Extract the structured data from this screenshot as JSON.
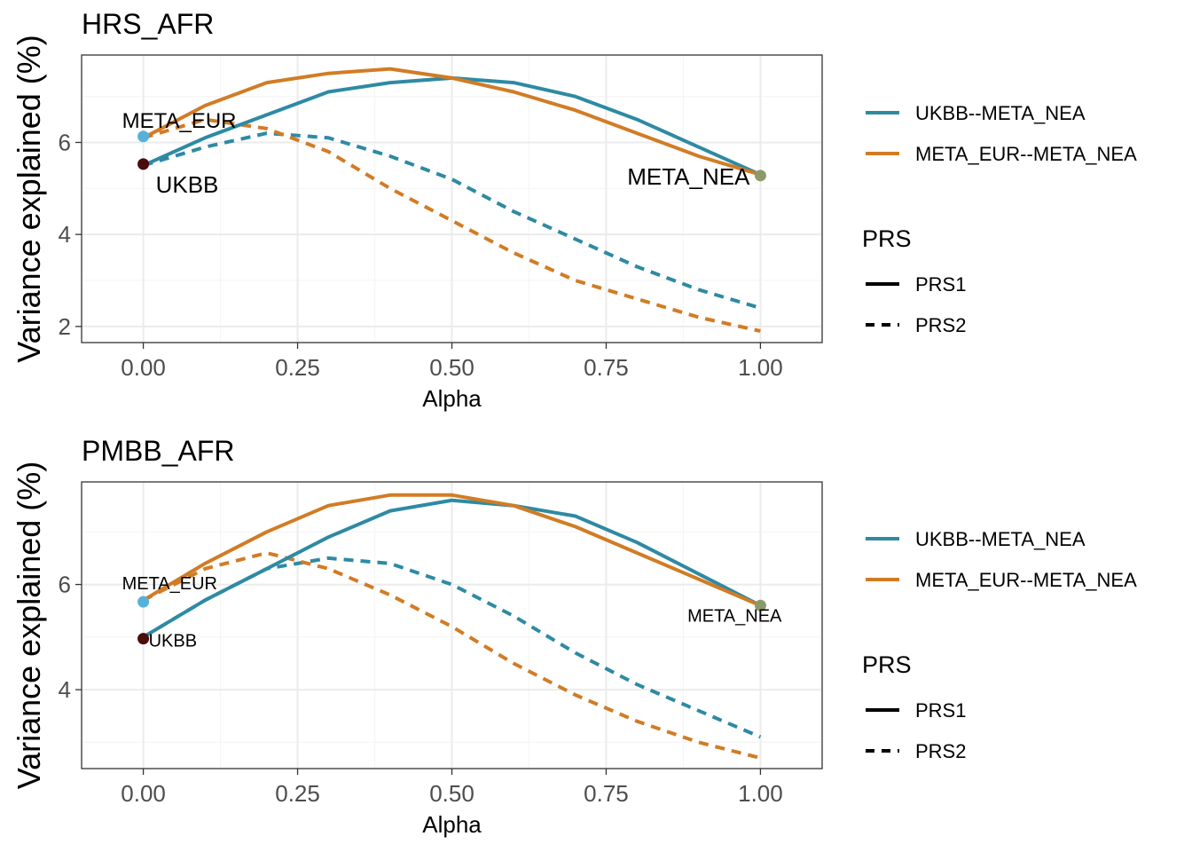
{
  "colors": {
    "teal": "#2E8AA3",
    "orange": "#D17C25",
    "ukbb_point": "#4A0C0C",
    "meta_eur_point": "#56B1DA",
    "meta_nea_point": "#8A9A6A",
    "grid_major": "#EBEBEB",
    "grid_minor": "#F5F5F5",
    "panel_border": "#333333"
  },
  "chart_data": [
    {
      "type": "line",
      "title": "HRS_AFR",
      "xlabel": "Alpha",
      "ylabel": "Variance explained (%)",
      "xlim": [
        -0.1,
        1.1
      ],
      "ylim": [
        1.65,
        7.9
      ],
      "x_ticks": [
        "0.00",
        "0.25",
        "0.50",
        "0.75",
        "1.00"
      ],
      "y_ticks": [
        "2",
        "4",
        "6"
      ],
      "x": [
        0,
        0.1,
        0.2,
        0.3,
        0.4,
        0.5,
        0.6,
        0.7,
        0.8,
        0.9,
        1.0
      ],
      "series": [
        {
          "pair": "UKBB--META_NEA",
          "prs": "PRS1",
          "values": [
            5.5,
            6.1,
            6.6,
            7.1,
            7.3,
            7.4,
            7.3,
            7.0,
            6.5,
            5.9,
            5.3
          ]
        },
        {
          "pair": "META_EUR--META_NEA",
          "prs": "PRS1",
          "values": [
            6.1,
            6.8,
            7.3,
            7.5,
            7.6,
            7.4,
            7.1,
            6.7,
            6.2,
            5.7,
            5.3
          ]
        },
        {
          "pair": "UKBB--META_NEA",
          "prs": "PRS2",
          "values": [
            5.5,
            5.9,
            6.2,
            6.1,
            5.7,
            5.2,
            4.5,
            3.9,
            3.3,
            2.8,
            2.4
          ]
        },
        {
          "pair": "META_EUR--META_NEA",
          "prs": "PRS2",
          "values": [
            6.1,
            6.5,
            6.3,
            5.8,
            5.0,
            4.3,
            3.6,
            3.0,
            2.6,
            2.2,
            1.9
          ]
        }
      ],
      "points": [
        {
          "label": "UKBB",
          "x": 0,
          "y": 5.53,
          "color_key": "ukbb_point"
        },
        {
          "label": "META_EUR",
          "x": 0,
          "y": 6.13,
          "color_key": "meta_eur_point"
        },
        {
          "label": "META_NEA",
          "x": 1,
          "y": 5.28,
          "color_key": "meta_nea_point"
        }
      ],
      "legend": {
        "pair_items": [
          "UKBB--META_NEA",
          "META_EUR--META_NEA"
        ],
        "prs_title": "PRS",
        "prs_items": [
          "PRS1",
          "PRS2"
        ]
      }
    },
    {
      "type": "line",
      "title": "PMBB_AFR",
      "xlabel": "Alpha",
      "ylabel": "Variance explained (%)",
      "xlim": [
        -0.1,
        1.1
      ],
      "ylim": [
        2.5,
        7.95
      ],
      "x_ticks": [
        "0.00",
        "0.25",
        "0.50",
        "0.75",
        "1.00"
      ],
      "y_ticks": [
        "4",
        "6"
      ],
      "x": [
        0,
        0.1,
        0.2,
        0.3,
        0.4,
        0.5,
        0.6,
        0.7,
        0.8,
        0.9,
        1.0
      ],
      "series": [
        {
          "pair": "UKBB--META_NEA",
          "prs": "PRS1",
          "values": [
            5.0,
            5.7,
            6.3,
            6.9,
            7.4,
            7.6,
            7.5,
            7.3,
            6.8,
            6.2,
            5.6
          ]
        },
        {
          "pair": "META_EUR--META_NEA",
          "prs": "PRS1",
          "values": [
            5.7,
            6.4,
            7.0,
            7.5,
            7.7,
            7.7,
            7.5,
            7.1,
            6.6,
            6.1,
            5.6
          ]
        },
        {
          "pair": "UKBB--META_NEA",
          "prs": "PRS2",
          "values": [
            5.0,
            5.7,
            6.3,
            6.5,
            6.4,
            6.0,
            5.4,
            4.7,
            4.1,
            3.6,
            3.1
          ]
        },
        {
          "pair": "META_EUR--META_NEA",
          "prs": "PRS2",
          "values": [
            5.7,
            6.3,
            6.6,
            6.3,
            5.8,
            5.2,
            4.5,
            3.9,
            3.4,
            3.0,
            2.7
          ]
        }
      ],
      "points": [
        {
          "label": "UKBB",
          "x": 0,
          "y": 4.97,
          "color_key": "ukbb_point"
        },
        {
          "label": "META_EUR",
          "x": 0,
          "y": 5.67,
          "color_key": "meta_eur_point"
        },
        {
          "label": "META_NEA",
          "x": 1,
          "y": 5.6,
          "color_key": "meta_nea_point"
        }
      ],
      "legend": {
        "pair_items": [
          "UKBB--META_NEA",
          "META_EUR--META_NEA"
        ],
        "prs_title": "PRS",
        "prs_items": [
          "PRS1",
          "PRS2"
        ]
      }
    }
  ]
}
